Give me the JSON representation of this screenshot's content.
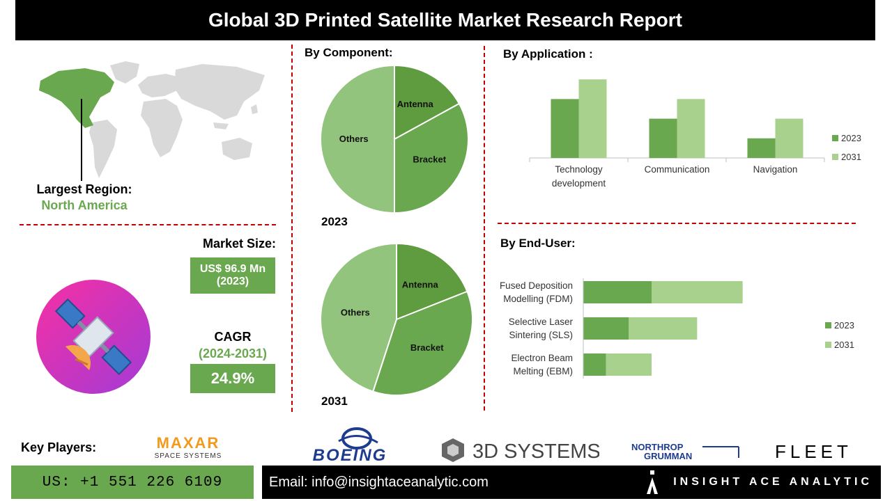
{
  "title": "Global 3D Printed Satellite Market Research Report",
  "region": {
    "label": "Largest Region:",
    "value": "North America"
  },
  "market_size": {
    "label": "Market Size:",
    "value_line1": "US$ 96.9 Mn",
    "value_line2": "(2023)"
  },
  "cagr": {
    "label": "CAGR",
    "period": "(2024-2031)",
    "value": "24.9%"
  },
  "component": {
    "heading": "By Component:"
  },
  "application": {
    "heading": "By  Application :"
  },
  "end_user": {
    "heading": "By End-User:"
  },
  "key_players": {
    "label": "Key Players:",
    "logos": [
      "MAXAR",
      "SPACE SYSTEMS",
      "BOEING",
      "3D SYSTEMS",
      "NORTHROP",
      "GRUMMAN",
      "FLEET"
    ]
  },
  "footer": {
    "phone": "US: +1 551 226 6109",
    "email": "Email: info@insightaceanalytic.com",
    "brand": "INSIGHT ACE ANALYTIC"
  },
  "colors": {
    "dark_green": "#6aa84f",
    "mid_green": "#93c47d",
    "light_green": "#a9d18e",
    "accent_red": "#c00000"
  },
  "chart_data": [
    {
      "type": "pie",
      "year_label": "2023",
      "labels": [
        "Antenna",
        "Bracket",
        "Others"
      ],
      "values": [
        17,
        33,
        50
      ],
      "colors": [
        "#5f9b3f",
        "#6aa84f",
        "#93c47d"
      ]
    },
    {
      "type": "pie",
      "year_label": "2031",
      "labels": [
        "Antenna",
        "Bracket",
        "Others"
      ],
      "values": [
        19,
        36,
        45
      ],
      "colors": [
        "#5f9b3f",
        "#6aa84f",
        "#93c47d"
      ]
    },
    {
      "type": "bar",
      "categories": [
        "Technology development",
        "Communication",
        "Navigation"
      ],
      "category_lines": [
        [
          "Technology",
          "development"
        ],
        [
          "Communication"
        ],
        [
          "Navigation"
        ]
      ],
      "series": [
        {
          "name": "2023",
          "values": [
            3,
            2,
            1
          ],
          "color": "#6aa84f"
        },
        {
          "name": "2031",
          "values": [
            4,
            3,
            2
          ],
          "color": "#a9d18e"
        }
      ],
      "ylim": [
        0,
        4.5
      ],
      "legend": "right"
    },
    {
      "type": "bar",
      "orientation": "horizontal",
      "stacked": true,
      "categories": [
        "Fused Deposition Modelling (FDM)",
        "Selective Laser Sintering (SLS)",
        "Electron Beam Melting (EBM)"
      ],
      "category_lines": [
        [
          "Fused Deposition",
          "Modelling (FDM)"
        ],
        [
          "Selective Laser",
          "Sintering (SLS)"
        ],
        [
          "Electron Beam",
          "Melting (EBM)"
        ]
      ],
      "series": [
        {
          "name": "2023",
          "values": [
            3,
            2,
            1
          ],
          "color": "#6aa84f"
        },
        {
          "name": "2031",
          "values": [
            4,
            3,
            2
          ],
          "color": "#a9d18e"
        }
      ],
      "xlim": [
        0,
        7.5
      ],
      "legend": "right"
    }
  ]
}
